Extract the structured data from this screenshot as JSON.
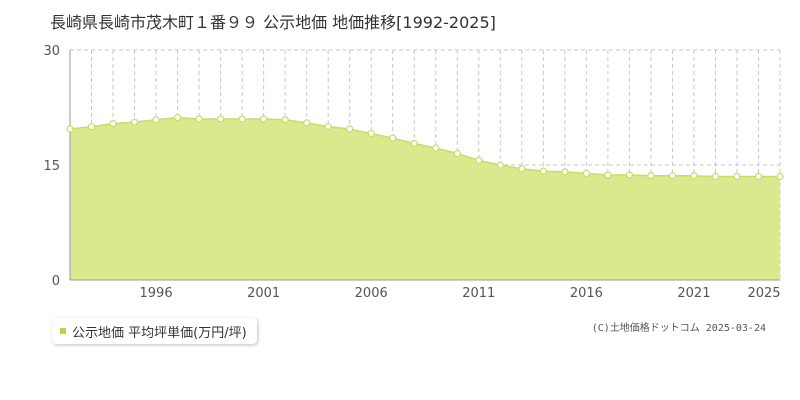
{
  "title": "長崎県長崎市茂木町１番９９ 公示地価 地価推移[1992-2025]",
  "legend": {
    "label": "公示地価 平均坪単価(万円/坪)"
  },
  "credit": "(C)土地価格ドットコム 2025-03-24",
  "colors": {
    "area_fill": "#d9ea8e",
    "line": "#c7df5c",
    "marker_fill": "#ffffff",
    "legend": "#bcd640"
  },
  "chart_data": {
    "type": "area",
    "x": [
      1992,
      1993,
      1994,
      1995,
      1996,
      1997,
      1998,
      1999,
      2000,
      2001,
      2002,
      2003,
      2004,
      2005,
      2006,
      2007,
      2008,
      2009,
      2010,
      2011,
      2012,
      2013,
      2014,
      2015,
      2016,
      2017,
      2018,
      2019,
      2020,
      2021,
      2022,
      2023,
      2024,
      2025
    ],
    "series": [
      {
        "name": "公示地価 平均坪単価(万円/坪)",
        "values": [
          19.7,
          20.0,
          20.4,
          20.6,
          20.9,
          21.2,
          21.0,
          21.0,
          21.0,
          21.0,
          20.9,
          20.5,
          20.0,
          19.7,
          19.1,
          18.5,
          17.8,
          17.2,
          16.5,
          15.6,
          15.0,
          14.5,
          14.2,
          14.1,
          13.9,
          13.7,
          13.7,
          13.6,
          13.6,
          13.6,
          13.5,
          13.5,
          13.5,
          13.5
        ]
      }
    ],
    "xticks": [
      "1996",
      "2001",
      "2006",
      "2011",
      "2016",
      "2021",
      "2025"
    ],
    "yticks": [
      "0",
      "15",
      "30"
    ],
    "xlim": [
      1992,
      2025
    ],
    "ylim": [
      0,
      30
    ],
    "grid": true
  }
}
